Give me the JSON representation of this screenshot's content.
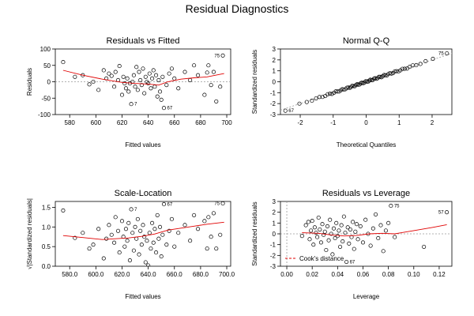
{
  "page": {
    "title": "Residual Diagnostics"
  },
  "chart_data": [
    {
      "type": "scatter",
      "title": "Residuals vs Fitted",
      "xlabel": "Fitted values",
      "ylabel": "Residuals",
      "xlim": [
        569,
        703
      ],
      "ylim": [
        -100,
        100
      ],
      "xticks": [
        580,
        600,
        620,
        640,
        660,
        680,
        700
      ],
      "yticks": [
        -100,
        -50,
        0,
        50,
        100
      ],
      "zero_line": 0,
      "points": [
        {
          "x": 575,
          "y": 60
        },
        {
          "x": 584,
          "y": 15
        },
        {
          "x": 590,
          "y": 20
        },
        {
          "x": 595,
          "y": -8
        },
        {
          "x": 598,
          "y": 0
        },
        {
          "x": 602,
          "y": -25
        },
        {
          "x": 606,
          "y": 35
        },
        {
          "x": 608,
          "y": 10
        },
        {
          "x": 610,
          "y": 25
        },
        {
          "x": 612,
          "y": 18
        },
        {
          "x": 614,
          "y": -15
        },
        {
          "x": 615,
          "y": 30
        },
        {
          "x": 617,
          "y": 5
        },
        {
          "x": 618,
          "y": 48
        },
        {
          "x": 620,
          "y": -40
        },
        {
          "x": 621,
          "y": 15
        },
        {
          "x": 622,
          "y": -5
        },
        {
          "x": 623,
          "y": -20
        },
        {
          "x": 624,
          "y": 10
        },
        {
          "x": 625,
          "y": -30
        },
        {
          "x": 626,
          "y": -5
        },
        {
          "x": 627,
          "y": -68
        },
        {
          "x": 628,
          "y": 0
        },
        {
          "x": 629,
          "y": 20
        },
        {
          "x": 630,
          "y": -15
        },
        {
          "x": 631,
          "y": 45
        },
        {
          "x": 632,
          "y": -25
        },
        {
          "x": 633,
          "y": 30
        },
        {
          "x": 634,
          "y": 5
        },
        {
          "x": 635,
          "y": -10
        },
        {
          "x": 636,
          "y": 40
        },
        {
          "x": 637,
          "y": -35
        },
        {
          "x": 638,
          "y": 15
        },
        {
          "x": 639,
          "y": 0
        },
        {
          "x": 640,
          "y": -5
        },
        {
          "x": 641,
          "y": 25
        },
        {
          "x": 642,
          "y": -20
        },
        {
          "x": 643,
          "y": 10
        },
        {
          "x": 644,
          "y": 35
        },
        {
          "x": 645,
          "y": -15
        },
        {
          "x": 646,
          "y": 20
        },
        {
          "x": 647,
          "y": -45
        },
        {
          "x": 648,
          "y": 5
        },
        {
          "x": 649,
          "y": -30
        },
        {
          "x": 650,
          "y": -55
        },
        {
          "x": 651,
          "y": 15
        },
        {
          "x": 652,
          "y": -80
        },
        {
          "x": 654,
          "y": -10
        },
        {
          "x": 656,
          "y": 25
        },
        {
          "x": 658,
          "y": 40
        },
        {
          "x": 660,
          "y": 10
        },
        {
          "x": 663,
          "y": -20
        },
        {
          "x": 668,
          "y": 30
        },
        {
          "x": 672,
          "y": 5
        },
        {
          "x": 675,
          "y": 50
        },
        {
          "x": 678,
          "y": 20
        },
        {
          "x": 683,
          "y": -40
        },
        {
          "x": 685,
          "y": 28
        },
        {
          "x": 686,
          "y": 50
        },
        {
          "x": 688,
          "y": -10
        },
        {
          "x": 690,
          "y": 30
        },
        {
          "x": 692,
          "y": -60
        },
        {
          "x": 695,
          "y": -15
        },
        {
          "x": 697,
          "y": 80
        }
      ],
      "smooth": [
        [
          575,
          35
        ],
        [
          590,
          20
        ],
        [
          605,
          8
        ],
        [
          620,
          -2
        ],
        [
          630,
          -5
        ],
        [
          640,
          -7
        ],
        [
          648,
          -10
        ],
        [
          655,
          0
        ],
        [
          665,
          8
        ],
        [
          675,
          12
        ],
        [
          685,
          15
        ],
        [
          698,
          25
        ]
      ],
      "labels": [
        {
          "text": "75",
          "x": 697,
          "y": 80
        },
        {
          "text": "67",
          "x": 652,
          "y": -80
        },
        {
          "text": "7",
          "x": 627,
          "y": -68
        }
      ]
    },
    {
      "type": "scatter",
      "title": "Normal Q-Q",
      "xlabel": "Theoretical Quantiles",
      "ylabel": "Standardized residuals",
      "xlim": [
        -2.6,
        2.6
      ],
      "ylim": [
        -3,
        3
      ],
      "xticks": [
        -2,
        -1,
        0,
        1,
        2
      ],
      "yticks": [
        -3,
        -2,
        -1,
        0,
        1,
        2,
        3
      ],
      "n_points": 70,
      "first_point": [
        -2.45,
        -2.65
      ],
      "last_point": [
        2.45,
        2.6
      ],
      "reference_line": [
        [
          -2.6,
          -2.6
        ],
        [
          2.6,
          2.6
        ]
      ],
      "labels": [
        {
          "text": "75",
          "x": 2.45,
          "y": 2.6
        },
        {
          "text": "67",
          "x": -2.45,
          "y": -2.65
        }
      ]
    },
    {
      "type": "scatter",
      "title": "Scale-Location",
      "xlabel": "Fitted values",
      "ylabel": "√|Standardized residuals|",
      "xlim": [
        569,
        703
      ],
      "ylim": [
        0,
        1.65
      ],
      "xticks": [
        580,
        600,
        620,
        640,
        660,
        680,
        700
      ],
      "yticks": [
        0.0,
        0.5,
        1.0,
        1.5
      ],
      "points": [
        {
          "x": 575,
          "y": 1.42
        },
        {
          "x": 584,
          "y": 0.72
        },
        {
          "x": 590,
          "y": 0.85
        },
        {
          "x": 595,
          "y": 0.45
        },
        {
          "x": 598,
          "y": 0.55
        },
        {
          "x": 602,
          "y": 0.95
        },
        {
          "x": 606,
          "y": 0.2
        },
        {
          "x": 608,
          "y": 0.7
        },
        {
          "x": 610,
          "y": 1.05
        },
        {
          "x": 612,
          "y": 0.8
        },
        {
          "x": 614,
          "y": 0.6
        },
        {
          "x": 615,
          "y": 1.25
        },
        {
          "x": 617,
          "y": 0.9
        },
        {
          "x": 618,
          "y": 0.35
        },
        {
          "x": 620,
          "y": 1.15
        },
        {
          "x": 621,
          "y": 0.75
        },
        {
          "x": 622,
          "y": 0.5
        },
        {
          "x": 623,
          "y": 0.95
        },
        {
          "x": 624,
          "y": 0.65
        },
        {
          "x": 625,
          "y": 1.1
        },
        {
          "x": 626,
          "y": 0.15
        },
        {
          "x": 627,
          "y": 1.45
        },
        {
          "x": 628,
          "y": 0.85
        },
        {
          "x": 629,
          "y": 0.4
        },
        {
          "x": 630,
          "y": 1.0
        },
        {
          "x": 631,
          "y": 0.7
        },
        {
          "x": 632,
          "y": 1.2
        },
        {
          "x": 633,
          "y": 0.3
        },
        {
          "x": 634,
          "y": 0.9
        },
        {
          "x": 635,
          "y": 0.55
        },
        {
          "x": 636,
          "y": 1.05
        },
        {
          "x": 637,
          "y": 0.75
        },
        {
          "x": 638,
          "y": 0.1
        },
        {
          "x": 639,
          "y": 0.65
        },
        {
          "x": 640,
          "y": 0.02
        },
        {
          "x": 641,
          "y": 0.85
        },
        {
          "x": 642,
          "y": 0.45
        },
        {
          "x": 643,
          "y": 1.1
        },
        {
          "x": 644,
          "y": 0.6
        },
        {
          "x": 645,
          "y": 0.95
        },
        {
          "x": 646,
          "y": 0.35
        },
        {
          "x": 647,
          "y": 1.3
        },
        {
          "x": 648,
          "y": 0.7
        },
        {
          "x": 649,
          "y": 1.0
        },
        {
          "x": 650,
          "y": 0.25
        },
        {
          "x": 651,
          "y": 0.8
        },
        {
          "x": 652,
          "y": 1.58
        },
        {
          "x": 654,
          "y": 0.55
        },
        {
          "x": 656,
          "y": 0.9
        },
        {
          "x": 658,
          "y": 1.2
        },
        {
          "x": 660,
          "y": 0.5
        },
        {
          "x": 663,
          "y": 0.85
        },
        {
          "x": 668,
          "y": 1.05
        },
        {
          "x": 672,
          "y": 0.65
        },
        {
          "x": 675,
          "y": 1.3
        },
        {
          "x": 678,
          "y": 0.95
        },
        {
          "x": 683,
          "y": 1.15
        },
        {
          "x": 685,
          "y": 0.45
        },
        {
          "x": 686,
          "y": 1.25
        },
        {
          "x": 688,
          "y": 0.75
        },
        {
          "x": 690,
          "y": 1.35
        },
        {
          "x": 692,
          "y": 0.45
        },
        {
          "x": 695,
          "y": 0.8
        },
        {
          "x": 697,
          "y": 1.6
        }
      ],
      "smooth": [
        [
          575,
          0.78
        ],
        [
          590,
          0.73
        ],
        [
          605,
          0.68
        ],
        [
          615,
          0.7
        ],
        [
          625,
          0.72
        ],
        [
          635,
          0.76
        ],
        [
          645,
          0.82
        ],
        [
          655,
          0.92
        ],
        [
          665,
          0.97
        ],
        [
          675,
          1.02
        ],
        [
          685,
          1.07
        ],
        [
          698,
          1.12
        ]
      ],
      "labels": [
        {
          "text": "75",
          "x": 697,
          "y": 1.6
        },
        {
          "text": "67",
          "x": 652,
          "y": 1.58
        },
        {
          "text": "7",
          "x": 627,
          "y": 1.45
        }
      ]
    },
    {
      "type": "scatter",
      "title": "Residuals vs Leverage",
      "xlabel": "Leverage",
      "ylabel": "Standardized residuals",
      "xlim": [
        -0.005,
        0.13
      ],
      "ylim": [
        -3,
        3
      ],
      "xticks": [
        0.0,
        0.02,
        0.04,
        0.06,
        0.08,
        0.1,
        0.12
      ],
      "yticks": [
        -3,
        -2,
        -1,
        0,
        1,
        2,
        3
      ],
      "legend": {
        "label": "Cook's distance",
        "placement": "bottom-left"
      },
      "points": [
        {
          "x": 0.012,
          "y": -0.2
        },
        {
          "x": 0.015,
          "y": 0.8
        },
        {
          "x": 0.017,
          "y": 1.1
        },
        {
          "x": 0.018,
          "y": -0.5
        },
        {
          "x": 0.019,
          "y": 0.3
        },
        {
          "x": 0.02,
          "y": 1.2
        },
        {
          "x": 0.021,
          "y": -1.0
        },
        {
          "x": 0.022,
          "y": 0.6
        },
        {
          "x": 0.023,
          "y": 0.1
        },
        {
          "x": 0.024,
          "y": -0.3
        },
        {
          "x": 0.025,
          "y": 1.5
        },
        {
          "x": 0.026,
          "y": 0.4
        },
        {
          "x": 0.027,
          "y": -0.8
        },
        {
          "x": 0.028,
          "y": 0.9
        },
        {
          "x": 0.029,
          "y": -0.1
        },
        {
          "x": 0.03,
          "y": 0.2
        },
        {
          "x": 0.031,
          "y": -1.5
        },
        {
          "x": 0.032,
          "y": 0.7
        },
        {
          "x": 0.033,
          "y": -0.6
        },
        {
          "x": 0.034,
          "y": 1.3
        },
        {
          "x": 0.035,
          "y": 0.0
        },
        {
          "x": 0.036,
          "y": -1.9
        },
        {
          "x": 0.037,
          "y": 0.5
        },
        {
          "x": 0.038,
          "y": -0.4
        },
        {
          "x": 0.039,
          "y": 1.0
        },
        {
          "x": 0.04,
          "y": -0.2
        },
        {
          "x": 0.041,
          "y": 0.3
        },
        {
          "x": 0.042,
          "y": -1.2
        },
        {
          "x": 0.043,
          "y": 0.8
        },
        {
          "x": 0.044,
          "y": -0.7
        },
        {
          "x": 0.045,
          "y": 1.6
        },
        {
          "x": 0.046,
          "y": 0.1
        },
        {
          "x": 0.047,
          "y": -2.6
        },
        {
          "x": 0.048,
          "y": 0.6
        },
        {
          "x": 0.049,
          "y": -0.9
        },
        {
          "x": 0.05,
          "y": 0.4
        },
        {
          "x": 0.051,
          "y": -0.3
        },
        {
          "x": 0.052,
          "y": 1.1
        },
        {
          "x": 0.053,
          "y": -1.4
        },
        {
          "x": 0.054,
          "y": 0.2
        },
        {
          "x": 0.055,
          "y": 0.9
        },
        {
          "x": 0.056,
          "y": -0.5
        },
        {
          "x": 0.058,
          "y": 0.7
        },
        {
          "x": 0.06,
          "y": -0.8
        },
        {
          "x": 0.062,
          "y": 1.3
        },
        {
          "x": 0.064,
          "y": 0.0
        },
        {
          "x": 0.066,
          "y": -1.1
        },
        {
          "x": 0.068,
          "y": 0.5
        },
        {
          "x": 0.07,
          "y": 1.8
        },
        {
          "x": 0.072,
          "y": -0.4
        },
        {
          "x": 0.074,
          "y": 0.8
        },
        {
          "x": 0.076,
          "y": -1.6
        },
        {
          "x": 0.078,
          "y": 0.3
        },
        {
          "x": 0.08,
          "y": 1.0
        },
        {
          "x": 0.082,
          "y": 2.6
        },
        {
          "x": 0.085,
          "y": -0.3
        },
        {
          "x": 0.108,
          "y": -1.2
        },
        {
          "x": 0.126,
          "y": 2.0
        }
      ],
      "smooth": [
        [
          0.012,
          0.1
        ],
        [
          0.025,
          0.05
        ],
        [
          0.035,
          -0.1
        ],
        [
          0.045,
          -0.2
        ],
        [
          0.055,
          -0.15
        ],
        [
          0.065,
          0.0
        ],
        [
          0.075,
          0.05
        ],
        [
          0.085,
          0.0
        ],
        [
          0.1,
          0.3
        ],
        [
          0.115,
          0.6
        ],
        [
          0.126,
          0.85
        ]
      ],
      "labels": [
        {
          "text": "75",
          "x": 0.082,
          "y": 2.6
        },
        {
          "text": "57",
          "x": 0.126,
          "y": 2.0
        },
        {
          "text": "67",
          "x": 0.047,
          "y": -2.6
        }
      ]
    }
  ]
}
